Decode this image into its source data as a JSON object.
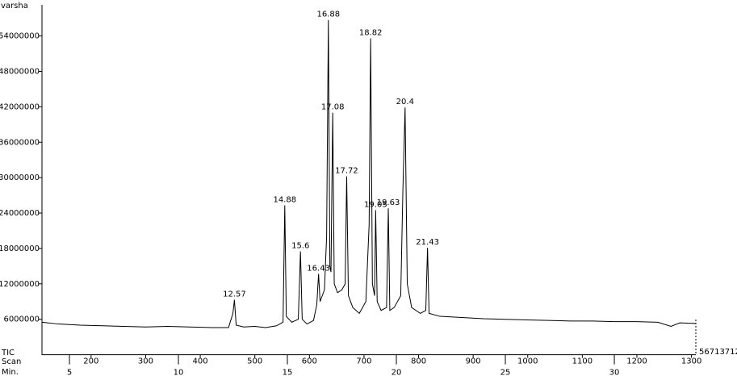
{
  "chart_data": {
    "type": "line",
    "title": "varsha",
    "y_label": "TIC",
    "x2_label": "Scan",
    "x_label": "Min.",
    "max_label": "56713712",
    "xlim": [
      3.74,
      33.74
    ],
    "xticks": [
      5,
      10,
      15,
      20,
      25,
      30
    ],
    "x2lim": [
      110,
      1308
    ],
    "x2ticks": [
      200,
      300,
      400,
      500,
      600,
      700,
      800,
      900,
      1000,
      1100,
      1200,
      1300
    ],
    "ylim": [
      0,
      59000000
    ],
    "yticks": [
      6000000,
      12000000,
      18000000,
      24000000,
      30000000,
      36000000,
      42000000,
      48000000,
      54000000
    ],
    "series": [
      {
        "color": "#000000",
        "x": [
          3.74,
          4.5,
          5.5,
          6.5,
          7.5,
          8.5,
          9.5,
          10.5,
          11.5,
          12.3,
          12.5,
          12.57,
          12.65,
          13.0,
          13.5,
          14.0,
          14.5,
          14.8,
          14.88,
          14.95,
          15.2,
          15.5,
          15.6,
          15.68,
          15.9,
          16.2,
          16.35,
          16.43,
          16.5,
          16.7,
          16.8,
          16.88,
          16.95,
          17.0,
          17.08,
          17.15,
          17.3,
          17.5,
          17.65,
          17.72,
          17.8,
          18.0,
          18.3,
          18.6,
          18.75,
          18.82,
          18.9,
          19.0,
          19.05,
          19.12,
          19.3,
          19.55,
          19.63,
          19.7,
          19.9,
          20.2,
          20.3,
          20.4,
          20.5,
          20.7,
          20.9,
          21.1,
          21.35,
          21.43,
          21.5,
          22.0,
          23,
          24,
          25,
          26,
          27,
          28,
          29,
          30,
          31,
          32,
          32.6,
          33,
          33.74
        ],
        "values": [
          5500000,
          5200000,
          5000000,
          4900000,
          4800000,
          4700000,
          4800000,
          4700000,
          4600000,
          4600000,
          7000000,
          9300000,
          5000000,
          4700000,
          4800000,
          4600000,
          4900000,
          5500000,
          25300000,
          6500000,
          5500000,
          6000000,
          17500000,
          6000000,
          5200000,
          5800000,
          8500000,
          13700000,
          9000000,
          11000000,
          20000000,
          56713712,
          15000000,
          14000000,
          41000000,
          12000000,
          10500000,
          11000000,
          12000000,
          30200000,
          10000000,
          8000000,
          7000000,
          9000000,
          22000000,
          53600000,
          12000000,
          10000000,
          24500000,
          9000000,
          7500000,
          8000000,
          24800000,
          7500000,
          8000000,
          10000000,
          28000000,
          41900000,
          12000000,
          8000000,
          7500000,
          7000000,
          7500000,
          18100000,
          7000000,
          6500000,
          6300000,
          6100000,
          6000000,
          5900000,
          5800000,
          5700000,
          5700000,
          5600000,
          5600000,
          5500000,
          4800000,
          5400000,
          5300000
        ]
      }
    ],
    "annotations": [
      {
        "text": "12.57",
        "x": 12.57,
        "y": 9300000
      },
      {
        "text": "14.88",
        "x": 14.88,
        "y": 25300000
      },
      {
        "text": "15.6",
        "x": 15.6,
        "y": 17500000
      },
      {
        "text": "16.43",
        "x": 16.43,
        "y": 13700000
      },
      {
        "text": "16.88",
        "x": 16.88,
        "y": 56713712
      },
      {
        "text": "17.08",
        "x": 17.08,
        "y": 41000000
      },
      {
        "text": "17.72",
        "x": 17.72,
        "y": 30200000
      },
      {
        "text": "18.82",
        "x": 18.82,
        "y": 53600000
      },
      {
        "text": "19.05",
        "x": 19.05,
        "y": 24500000
      },
      {
        "text": "19.63",
        "x": 19.63,
        "y": 24800000
      },
      {
        "text": "20.4",
        "x": 20.4,
        "y": 41900000
      },
      {
        "text": "21.43",
        "x": 21.43,
        "y": 18100000
      }
    ]
  }
}
